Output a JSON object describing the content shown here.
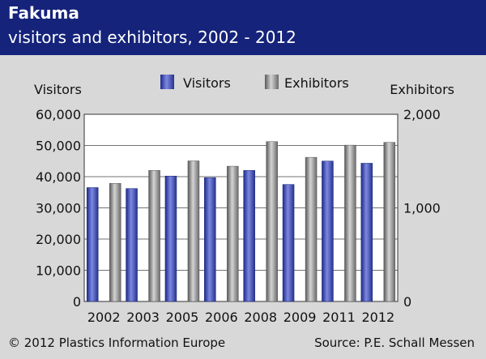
{
  "header": {
    "title": "Fakuma",
    "subtitle": "visitors and exhibitors, 2002 - 2012"
  },
  "footer": {
    "copyright": "© 2012 Plastics Information Europe",
    "source": "Source: P.E. Schall Messen"
  },
  "colors": {
    "header_bg": "#15237a",
    "visitors": "#3b49b8",
    "exhibitors": "#8c8c8c",
    "background": "#d8d8d8",
    "plot_bg": "#ffffff"
  },
  "chart_data": {
    "type": "bar",
    "title": "Fakuma",
    "subtitle": "visitors and exhibitors, 2002 - 2012",
    "categories": [
      "2002",
      "2003",
      "2005",
      "2006",
      "2008",
      "2009",
      "2011",
      "2012"
    ],
    "ylabel_left": "Visitors",
    "ylabel_right": "Exhibitors",
    "ylim_left": [
      0,
      60000
    ],
    "ylim_right": [
      0,
      2000
    ],
    "yticks_left": [
      "0",
      "10,000",
      "20,000",
      "30,000",
      "40,000",
      "50,000",
      "60,000"
    ],
    "yticks_right": [
      "0",
      "1,000",
      "2,000"
    ],
    "legend_position": "top-center",
    "grid": true,
    "series": [
      {
        "name": "Visitors",
        "axis": "left",
        "values": [
          36500,
          36200,
          40200,
          39700,
          42000,
          37500,
          45000,
          44300
        ]
      },
      {
        "name": "Exhibitors",
        "axis": "right",
        "values": [
          1262,
          1400,
          1502,
          1445,
          1708,
          1540,
          1670,
          1700
        ]
      }
    ]
  }
}
